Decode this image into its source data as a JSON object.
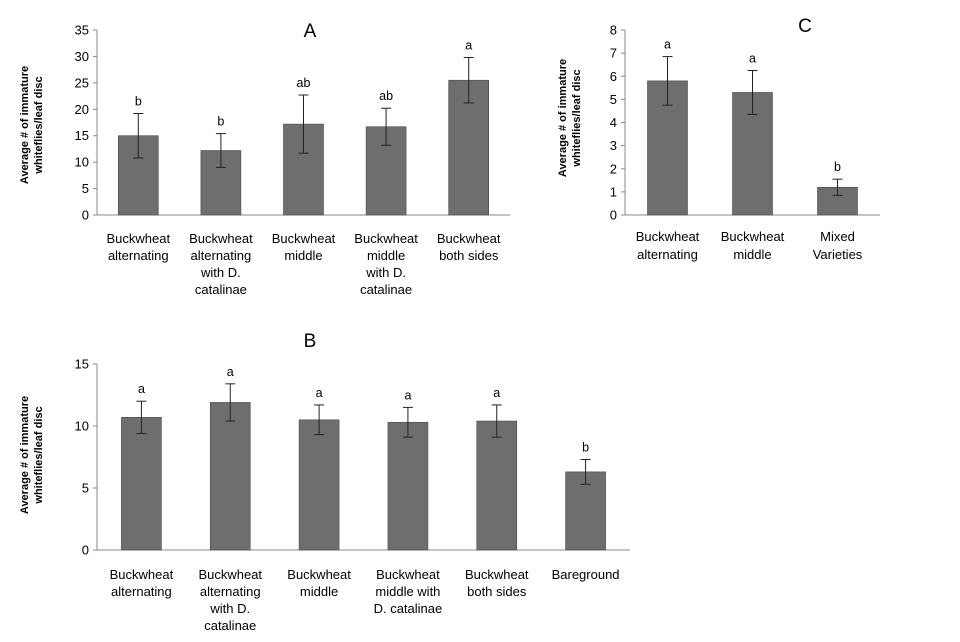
{
  "colors": {
    "bar": "#6e6e6e",
    "bar_edge": "#4a4a4a",
    "axis": "#8a8a8a",
    "text": "#000000"
  },
  "chart_data": [
    {
      "id": "A",
      "type": "bar",
      "title": "A",
      "ylabel": [
        "Average # of immature",
        "whiteflies/leaf disc"
      ],
      "xlabel": "",
      "ylim": [
        0,
        35
      ],
      "yticks": [
        0,
        5,
        10,
        15,
        20,
        25,
        30,
        35
      ],
      "grid": false,
      "categories": [
        [
          "Buckwheat",
          "alternating"
        ],
        [
          "Buckwheat",
          "alternating",
          "with D.",
          "catalinae"
        ],
        [
          "Buckwheat",
          "middle"
        ],
        [
          "Buckwheat",
          "middle",
          "with D.",
          "catalinae"
        ],
        [
          "Buckwheat",
          "both sides"
        ]
      ],
      "values": [
        15.0,
        12.2,
        17.2,
        16.7,
        25.5
      ],
      "errors": [
        4.2,
        3.2,
        5.5,
        3.5,
        4.3
      ],
      "significance": [
        "b",
        "b",
        "ab",
        "ab",
        "a"
      ]
    },
    {
      "id": "B",
      "type": "bar",
      "title": "B",
      "ylabel": [
        "Average # of immature",
        "whiteflies/leaf disc"
      ],
      "xlabel": "",
      "ylim": [
        0,
        15
      ],
      "yticks": [
        0,
        5,
        10,
        15
      ],
      "grid": false,
      "categories": [
        [
          "Buckwheat",
          "alternating"
        ],
        [
          "Buckwheat",
          "alternating",
          "with D.",
          "catalinae"
        ],
        [
          "Buckwheat",
          "middle"
        ],
        [
          "Buckwheat",
          "middle with",
          "D. catalinae"
        ],
        [
          "Buckwheat",
          "both sides"
        ],
        [
          "Bareground"
        ]
      ],
      "values": [
        10.7,
        11.9,
        10.5,
        10.3,
        10.4,
        6.3
      ],
      "errors": [
        1.3,
        1.5,
        1.2,
        1.2,
        1.3,
        1.0
      ],
      "significance": [
        "a",
        "a",
        "a",
        "a",
        "a",
        "b"
      ]
    },
    {
      "id": "C",
      "type": "bar",
      "title": "C",
      "ylabel": [
        "Average # of immature",
        "whiteflies/leaf disc"
      ],
      "xlabel": "",
      "ylim": [
        0,
        8
      ],
      "yticks": [
        0,
        1,
        2,
        3,
        4,
        5,
        6,
        7,
        8
      ],
      "grid": false,
      "categories": [
        [
          "Buckwheat",
          "alternating"
        ],
        [
          "Buckwheat",
          "middle"
        ],
        [
          "Mixed",
          "Varieties"
        ]
      ],
      "values": [
        5.8,
        5.3,
        1.2
      ],
      "errors": [
        1.05,
        0.95,
        0.35
      ],
      "significance": [
        "a",
        "a",
        "b"
      ]
    }
  ]
}
